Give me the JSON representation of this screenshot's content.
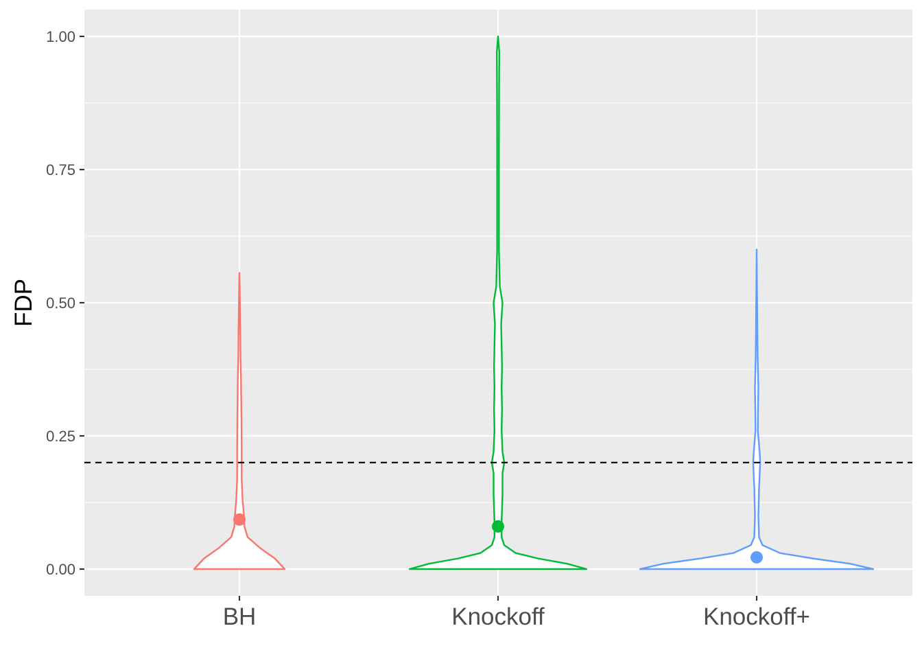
{
  "chart_data": {
    "type": "violin",
    "title": "",
    "xlabel": "",
    "ylabel": "FDP",
    "ylim": [
      -0.05,
      1.05
    ],
    "yticks": [
      0.0,
      0.25,
      0.5,
      0.75,
      1.0
    ],
    "ytick_labels": [
      "0.00",
      "0.25",
      "0.50",
      "0.75",
      "1.00"
    ],
    "categories": [
      "BH",
      "Knockoff",
      "Knockoff+"
    ],
    "reference_line": {
      "y": 0.2,
      "style": "dashed",
      "color": "#000000"
    },
    "grid": true,
    "legend": "none",
    "series": [
      {
        "category": "BH",
        "color": "#F8766D",
        "mean": 0.093,
        "max": 0.556,
        "density": [
          [
            0.0,
            1.0
          ],
          [
            0.02,
            0.78
          ],
          [
            0.04,
            0.45
          ],
          [
            0.06,
            0.18
          ],
          [
            0.08,
            0.11
          ],
          [
            0.1,
            0.1
          ],
          [
            0.13,
            0.07
          ],
          [
            0.17,
            0.05
          ],
          [
            0.22,
            0.05
          ],
          [
            0.28,
            0.045
          ],
          [
            0.32,
            0.04
          ],
          [
            0.36,
            0.035
          ],
          [
            0.4,
            0.025
          ],
          [
            0.45,
            0.02
          ],
          [
            0.5,
            0.01
          ],
          [
            0.53,
            0.006
          ],
          [
            0.556,
            0.0
          ]
        ]
      },
      {
        "category": "Knockoff",
        "color": "#00BA38",
        "mean": 0.08,
        "max": 1.0,
        "density": [
          [
            0.0,
            1.0
          ],
          [
            0.01,
            0.78
          ],
          [
            0.02,
            0.45
          ],
          [
            0.03,
            0.2
          ],
          [
            0.045,
            0.07
          ],
          [
            0.06,
            0.04
          ],
          [
            0.09,
            0.04
          ],
          [
            0.14,
            0.05
          ],
          [
            0.18,
            0.05
          ],
          [
            0.2,
            0.07
          ],
          [
            0.22,
            0.05
          ],
          [
            0.26,
            0.04
          ],
          [
            0.3,
            0.045
          ],
          [
            0.34,
            0.04
          ],
          [
            0.38,
            0.045
          ],
          [
            0.42,
            0.04
          ],
          [
            0.46,
            0.035
          ],
          [
            0.5,
            0.05
          ],
          [
            0.53,
            0.02
          ],
          [
            0.6,
            0.01
          ],
          [
            0.7,
            0.01
          ],
          [
            0.8,
            0.01
          ],
          [
            0.9,
            0.012
          ],
          [
            0.97,
            0.014
          ],
          [
            1.0,
            0.0
          ]
        ]
      },
      {
        "category": "Knockoff+",
        "color": "#619CFF",
        "mean": 0.022,
        "max": 0.6,
        "density": [
          [
            0.0,
            1.0
          ],
          [
            0.01,
            0.8
          ],
          [
            0.02,
            0.48
          ],
          [
            0.03,
            0.2
          ],
          [
            0.045,
            0.05
          ],
          [
            0.06,
            0.02
          ],
          [
            0.1,
            0.015
          ],
          [
            0.15,
            0.02
          ],
          [
            0.2,
            0.03
          ],
          [
            0.22,
            0.025
          ],
          [
            0.26,
            0.01
          ],
          [
            0.3,
            0.012
          ],
          [
            0.34,
            0.015
          ],
          [
            0.4,
            0.008
          ],
          [
            0.45,
            0.006
          ],
          [
            0.5,
            0.004
          ],
          [
            0.55,
            0.002
          ],
          [
            0.6,
            0.0
          ]
        ]
      }
    ]
  }
}
